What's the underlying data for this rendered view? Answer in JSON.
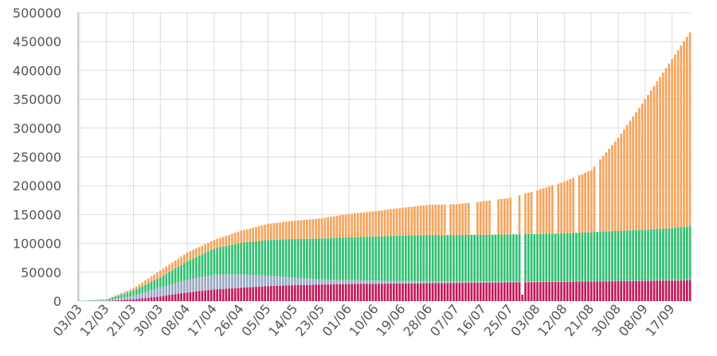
{
  "chart_data": {
    "type": "bar",
    "stacked": true,
    "title": "",
    "xlabel": "",
    "ylabel": "",
    "ylim": [
      0,
      500000
    ],
    "grid": true,
    "legend": "none",
    "y_ticks": [
      0,
      50000,
      100000,
      150000,
      200000,
      250000,
      300000,
      350000,
      400000,
      450000,
      500000
    ],
    "y_tick_labels": [
      "0",
      "50000",
      "100000",
      "150000",
      "200000",
      "250000",
      "300000",
      "350000",
      "400000",
      "450000",
      "500000"
    ],
    "x_tick_labels": [
      "03/03",
      "12/03",
      "21/03",
      "30/03",
      "08/04",
      "17/04",
      "26/04",
      "05/05",
      "14/05",
      "23/05",
      "01/06",
      "10/06",
      "19/06",
      "28/06",
      "07/07",
      "16/07",
      "25/07",
      "03/08",
      "12/08",
      "21/08",
      "30/08",
      "08/09",
      "17/09"
    ],
    "start_date": "2020-03-03",
    "end_date": "2020-09-23",
    "series_colors": [
      "#c2185b",
      "#9aa8c4",
      "#2fbf71",
      "#f5a45d"
    ],
    "series": [
      {
        "x": [
          "2020-03-03",
          "2020-03-12",
          "2020-03-21",
          "2020-03-30",
          "2020-04-08",
          "2020-04-17",
          "2020-04-26",
          "2020-05-05",
          "2020-05-14",
          "2020-05-23",
          "2020-06-01",
          "2020-06-10",
          "2020-06-19",
          "2020-06-28",
          "2020-07-07",
          "2020-07-16",
          "2020-07-25",
          "2020-08-03",
          "2020-08-12",
          "2020-08-21",
          "2020-08-30",
          "2020-09-08",
          "2020-09-17",
          "2020-09-23"
        ],
        "values": [
          0,
          300,
          3000,
          8000,
          15000,
          20000,
          23000,
          26000,
          27500,
          28500,
          29500,
          30000,
          30500,
          31000,
          31500,
          32000,
          32500,
          33000,
          33500,
          34000,
          34500,
          35000,
          35500,
          36000
        ]
      },
      {
        "x": [
          "2020-03-03",
          "2020-03-12",
          "2020-03-21",
          "2020-03-30",
          "2020-04-08",
          "2020-04-17",
          "2020-04-26",
          "2020-05-05",
          "2020-05-14",
          "2020-05-23",
          "2020-06-01",
          "2020-06-10",
          "2020-06-19",
          "2020-06-28",
          "2020-07-07",
          "2020-07-16",
          "2020-07-25",
          "2020-08-03",
          "2020-08-12",
          "2020-08-21",
          "2020-08-30",
          "2020-09-08",
          "2020-09-17",
          "2020-09-23"
        ],
        "values": [
          100,
          900,
          6000,
          16000,
          22000,
          26000,
          23000,
          18000,
          13000,
          9000,
          7000,
          5500,
          4500,
          3500,
          2500,
          2000,
          1600,
          1300,
          1000,
          900,
          800,
          700,
          600,
          500
        ]
      },
      {
        "x": [
          "2020-03-03",
          "2020-03-12",
          "2020-03-21",
          "2020-03-30",
          "2020-04-08",
          "2020-04-17",
          "2020-04-26",
          "2020-05-05",
          "2020-05-14",
          "2020-05-23",
          "2020-06-01",
          "2020-06-10",
          "2020-06-19",
          "2020-06-28",
          "2020-07-07",
          "2020-07-16",
          "2020-07-25",
          "2020-08-03",
          "2020-08-12",
          "2020-08-21",
          "2020-08-30",
          "2020-09-08",
          "2020-09-17",
          "2020-09-23"
        ],
        "values": [
          200,
          1500,
          9000,
          17000,
          32000,
          45000,
          55000,
          62000,
          67000,
          71000,
          74000,
          76500,
          78500,
          80000,
          80500,
          81000,
          81500,
          82000,
          83000,
          84500,
          86500,
          88000,
          90500,
          93500
        ]
      },
      {
        "x": [
          "2020-03-03",
          "2020-03-12",
          "2020-03-21",
          "2020-03-30",
          "2020-04-08",
          "2020-04-17",
          "2020-04-26",
          "2020-05-05",
          "2020-05-14",
          "2020-05-23",
          "2020-06-01",
          "2020-06-10",
          "2020-06-19",
          "2020-06-28",
          "2020-07-07",
          "2020-07-16",
          "2020-07-25",
          "2020-08-03",
          "2020-08-12",
          "2020-08-21",
          "2020-08-30",
          "2020-09-08",
          "2020-09-17",
          "2020-09-23"
        ],
        "values": [
          0,
          400,
          4000,
          12000,
          15000,
          15000,
          21000,
          28000,
          32000,
          35000,
          40500,
          44000,
          48500,
          52500,
          53500,
          58000,
          63500,
          76000,
          89500,
          107500,
          161000,
          226000,
          293000,
          336000
        ]
      }
    ],
    "missing_dates": [
      "2020-07-04",
      "2020-07-12",
      "2020-07-13",
      "2020-07-19",
      "2020-07-20",
      "2020-07-26",
      "2020-07-27",
      "2020-08-02",
      "2020-08-09",
      "2020-08-16",
      "2020-08-23"
    ],
    "partial_dates": [
      {
        "date": "2020-07-29",
        "values": [
          11000,
          0,
          0,
          0
        ]
      }
    ]
  }
}
